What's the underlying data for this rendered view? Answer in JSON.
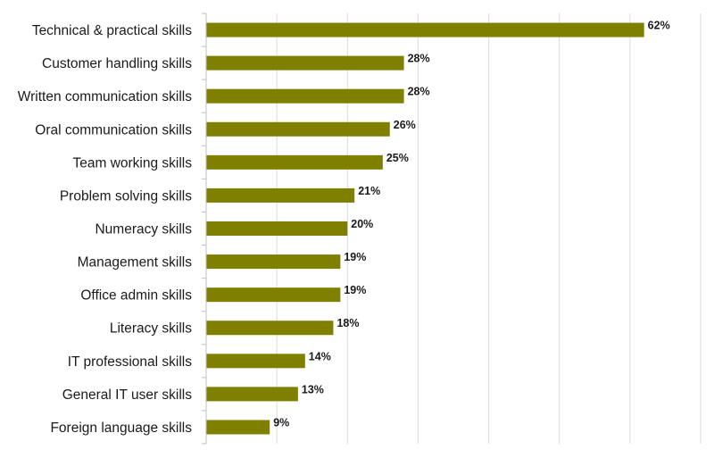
{
  "chart_data": {
    "type": "bar",
    "orientation": "horizontal",
    "categories": [
      "Technical & practical skills",
      "Customer handling skills",
      "Written communication skills",
      "Oral communication skills",
      "Team working skills",
      "Problem solving skills",
      "Numeracy skills",
      "Management skills",
      "Office admin skills",
      "Literacy skills",
      "IT professional skills",
      "General IT user skills",
      "Foreign language skills"
    ],
    "values": [
      62,
      28,
      28,
      26,
      25,
      21,
      20,
      19,
      19,
      18,
      14,
      13,
      9
    ],
    "value_labels": [
      "62%",
      "28%",
      "28%",
      "26%",
      "25%",
      "21%",
      "20%",
      "19%",
      "19%",
      "18%",
      "14%",
      "13%",
      "9%"
    ],
    "unit": "%",
    "xlim": [
      0,
      70
    ],
    "grid": true,
    "legend": "none",
    "colors": {
      "bar": "#808000",
      "grid": "#d9d9d9",
      "axis": "#bfbfbf"
    }
  }
}
